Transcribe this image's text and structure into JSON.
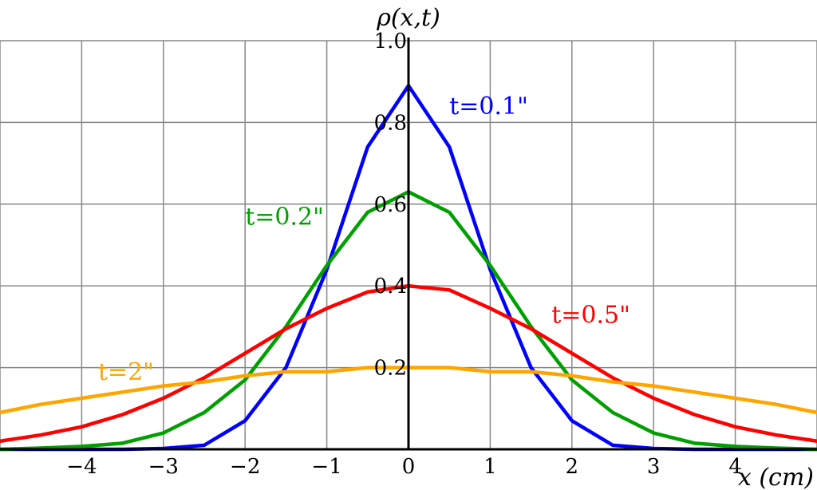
{
  "chart_data": {
    "type": "line",
    "title": "",
    "ylabel": "ρ(x,t)",
    "xlabel": "x (cm)",
    "xlim": [
      -5,
      5
    ],
    "ylim": [
      0,
      1.0
    ],
    "x_ticks": [
      -4,
      -3,
      -2,
      -1,
      0,
      1,
      2,
      3,
      4
    ],
    "x_tick_labels": [
      "−4",
      "−3",
      "−2",
      "−1",
      "0",
      "1",
      "2",
      "3",
      "4"
    ],
    "y_ticks": [
      0.2,
      0.4,
      0.6,
      0.8,
      1.0
    ],
    "y_tick_labels": [
      "0.2",
      "0.4",
      "0.6",
      "0.8",
      "1.0"
    ],
    "grid": true,
    "series": [
      {
        "name": "t=0.1\"",
        "color": "#0000ff",
        "x": [
          -5,
          -4.5,
          -4,
          -3.5,
          -3,
          -2.5,
          -2,
          -1.5,
          -1,
          -0.5,
          0,
          0.5,
          1,
          1.5,
          2,
          2.5,
          3,
          3.5,
          4,
          4.5,
          5
        ],
        "y": [
          0.0,
          0.0,
          0.0,
          0.0,
          0.002,
          0.01,
          0.07,
          0.2,
          0.44,
          0.74,
          0.89,
          0.74,
          0.44,
          0.2,
          0.07,
          0.01,
          0.002,
          0.0,
          0.0,
          0.0,
          0.0
        ]
      },
      {
        "name": "t=0.2\"",
        "color": "#00a000",
        "x": [
          -5,
          -4.5,
          -4,
          -3.5,
          -3,
          -2.5,
          -2,
          -1.5,
          -1,
          -0.5,
          0,
          0.5,
          1,
          1.5,
          2,
          2.5,
          3,
          3.5,
          4,
          4.5,
          5
        ],
        "y": [
          0.0,
          0.003,
          0.007,
          0.015,
          0.04,
          0.09,
          0.17,
          0.3,
          0.45,
          0.58,
          0.63,
          0.58,
          0.45,
          0.3,
          0.17,
          0.09,
          0.04,
          0.015,
          0.007,
          0.003,
          0.0
        ]
      },
      {
        "name": "t=0.5\"",
        "color": "#ff0000",
        "x": [
          -5,
          -4.5,
          -4,
          -3.5,
          -3,
          -2.5,
          -2,
          -1.5,
          -1,
          -0.5,
          0,
          0.5,
          1,
          1.5,
          2,
          2.5,
          3,
          3.5,
          4,
          4.5,
          5
        ],
        "y": [
          0.02,
          0.035,
          0.055,
          0.085,
          0.125,
          0.175,
          0.235,
          0.295,
          0.345,
          0.385,
          0.4,
          0.39,
          0.345,
          0.295,
          0.235,
          0.175,
          0.125,
          0.085,
          0.055,
          0.035,
          0.02
        ]
      },
      {
        "name": "t=2\"",
        "color": "#ffa500",
        "x": [
          -5,
          -4.5,
          -4,
          -3.5,
          -3,
          -2.5,
          -2,
          -1.5,
          -1,
          -0.5,
          0,
          0.5,
          1,
          1.5,
          2,
          2.5,
          3,
          3.5,
          4,
          4.5,
          5
        ],
        "y": [
          0.09,
          0.11,
          0.125,
          0.14,
          0.155,
          0.165,
          0.18,
          0.19,
          0.19,
          0.2,
          0.2,
          0.2,
          0.19,
          0.19,
          0.18,
          0.165,
          0.155,
          0.14,
          0.125,
          0.11,
          0.09
        ]
      }
    ],
    "series_labels": [
      {
        "text": "t=0.1\"",
        "color": "#0000ff",
        "x": 0.5,
        "y": 0.82
      },
      {
        "text": "t=0.2\"",
        "color": "#00a000",
        "x": -2.0,
        "y": 0.55
      },
      {
        "text": "t=0.5\"",
        "color": "#ff0000",
        "x": 1.75,
        "y": 0.31
      },
      {
        "text": "t=2\"",
        "color": "#ffa500",
        "x": -3.8,
        "y": 0.17
      }
    ]
  }
}
